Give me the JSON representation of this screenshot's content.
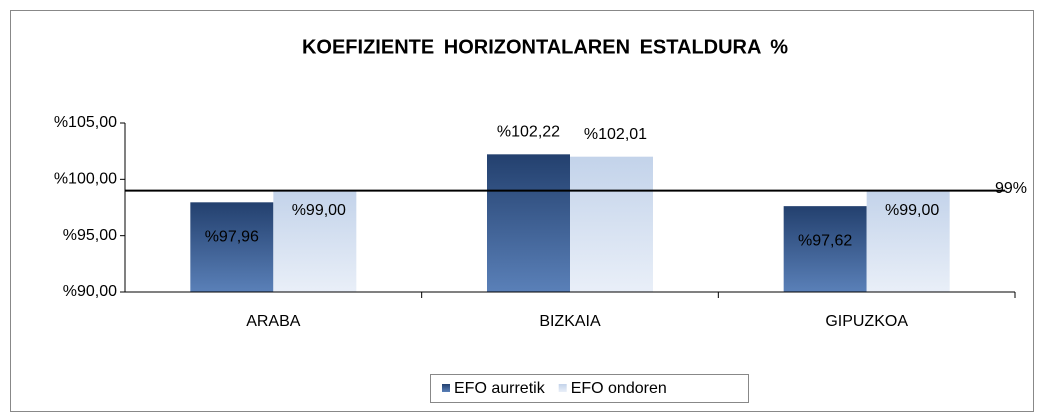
{
  "chart_data": {
    "type": "bar",
    "title": "KOEFIZIENTE HORIZONTALAREN ESTALDURA %",
    "categories": [
      "ARABA",
      "BIZKAIA",
      "GIPUZKOA"
    ],
    "series": [
      {
        "name": "EFO aurretik",
        "color": "#2f5288",
        "values": [
          97.96,
          102.22,
          97.62
        ],
        "value_labels": [
          "%97,96",
          "%102,22",
          "%97,62"
        ]
      },
      {
        "name": "EFO ondoren",
        "color": "#c9d8ec",
        "values": [
          99.0,
          102.01,
          99.0
        ],
        "value_labels": [
          "%99,00",
          "%102,01",
          "%99,00"
        ]
      }
    ],
    "ylim": [
      90,
      105
    ],
    "yticks": [
      {
        "value": 90,
        "label": "%90,00"
      },
      {
        "value": 95,
        "label": "%95,00"
      },
      {
        "value": 100,
        "label": "%100,00"
      },
      {
        "value": 105,
        "label": "%105,00"
      }
    ],
    "reference_line": {
      "value": 99,
      "label": "99%"
    },
    "legend": "bottom"
  }
}
